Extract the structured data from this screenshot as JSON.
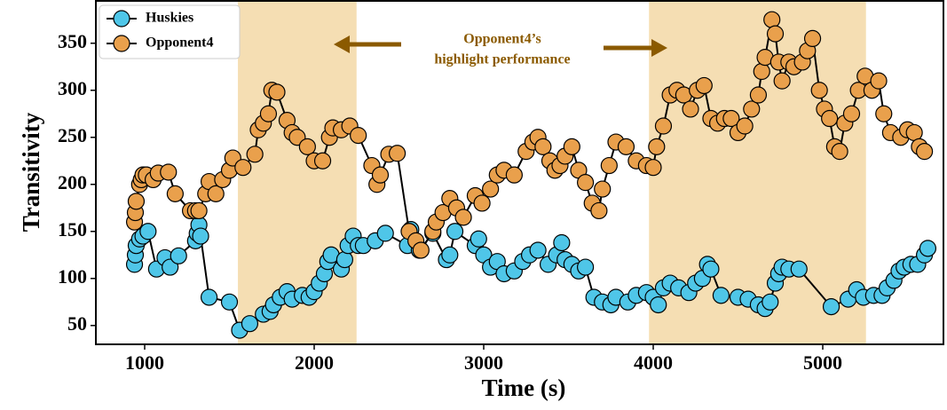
{
  "chart_data": {
    "type": "line",
    "x_label": "Time (s)",
    "y_label": "Transitivity",
    "xlim": [
      712,
      5712
    ],
    "ylim": [
      30,
      395
    ],
    "xticks": [
      1000,
      2000,
      3000,
      4000,
      5000
    ],
    "yticks": [
      50,
      100,
      150,
      200,
      250,
      300,
      350
    ],
    "legend": "upper left",
    "highlight_color": "#f5deb3",
    "highlight_spans": [
      [
        1550,
        2250
      ],
      [
        3975,
        5255
      ]
    ],
    "annotation": {
      "lines": [
        "Opponent4’s",
        "highlight performance"
      ],
      "color": "#8b5a00"
    },
    "series": [
      {
        "name": "Huskies",
        "color": "#4fc6e8",
        "x": [
          940,
          945,
          950,
          970,
          990,
          1020,
          1070,
          1120,
          1150,
          1200,
          1300,
          1310,
          1320,
          1330,
          1380,
          1500,
          1560,
          1620,
          1700,
          1740,
          1760,
          1800,
          1840,
          1870,
          1930,
          1970,
          2000,
          2030,
          2060,
          2080,
          2100,
          2160,
          2180,
          2200,
          2230,
          2260,
          2290,
          2360,
          2420,
          2550,
          2570,
          2620,
          2700,
          2780,
          2800,
          2830,
          2950,
          2970,
          3000,
          3040,
          3080,
          3120,
          3180,
          3230,
          3270,
          3320,
          3380,
          3430,
          3460,
          3480,
          3520,
          3560,
          3600,
          3650,
          3700,
          3750,
          3780,
          3850,
          3900,
          3960,
          4000,
          4030,
          4060,
          4100,
          4150,
          4210,
          4250,
          4290,
          4320,
          4340,
          4400,
          4500,
          4560,
          4620,
          4660,
          4690,
          4720,
          4740,
          4760,
          4800,
          4860,
          5050,
          5150,
          5200,
          5240,
          5300,
          5350,
          5380,
          5420,
          5450,
          5480,
          5520,
          5560,
          5600,
          5620
        ],
        "values": [
          115,
          125,
          135,
          142,
          145,
          150,
          110,
          122,
          112,
          124,
          140,
          148,
          157,
          145,
          80,
          75,
          45,
          52,
          62,
          65,
          72,
          80,
          86,
          78,
          82,
          80,
          86,
          95,
          105,
          118,
          125,
          110,
          120,
          135,
          145,
          135,
          135,
          140,
          148,
          135,
          152,
          130,
          148,
          120,
          125,
          150,
          135,
          142,
          125,
          112,
          118,
          105,
          108,
          118,
          125,
          130,
          115,
          125,
          138,
          120,
          115,
          108,
          112,
          80,
          75,
          72,
          80,
          75,
          82,
          85,
          80,
          72,
          90,
          95,
          90,
          85,
          95,
          100,
          115,
          110,
          82,
          80,
          78,
          72,
          68,
          75,
          95,
          105,
          112,
          110,
          110,
          70,
          78,
          88,
          80,
          82,
          82,
          90,
          98,
          108,
          112,
          115,
          115,
          125,
          132
        ]
      },
      {
        "name": "Opponent4",
        "color": "#e9a04c",
        "x": [
          940,
          945,
          950,
          970,
          980,
          990,
          1010,
          1050,
          1080,
          1140,
          1180,
          1270,
          1300,
          1320,
          1360,
          1380,
          1420,
          1460,
          1500,
          1520,
          1580,
          1650,
          1670,
          1700,
          1730,
          1750,
          1780,
          1840,
          1870,
          1900,
          1960,
          2000,
          2050,
          2090,
          2110,
          2160,
          2210,
          2260,
          2340,
          2370,
          2390,
          2440,
          2490,
          2560,
          2600,
          2630,
          2700,
          2720,
          2760,
          2800,
          2840,
          2880,
          2950,
          2990,
          3040,
          3080,
          3120,
          3180,
          3250,
          3290,
          3320,
          3350,
          3390,
          3420,
          3450,
          3480,
          3520,
          3560,
          3600,
          3640,
          3680,
          3700,
          3740,
          3780,
          3840,
          3900,
          3960,
          4000,
          4020,
          4060,
          4100,
          4140,
          4180,
          4220,
          4260,
          4300,
          4340,
          4380,
          4420,
          4460,
          4500,
          4540,
          4580,
          4620,
          4640,
          4660,
          4700,
          4720,
          4740,
          4760,
          4800,
          4830,
          4880,
          4910,
          4940,
          4980,
          5010,
          5040,
          5070,
          5100,
          5130,
          5170,
          5210,
          5250,
          5290,
          5330,
          5360,
          5400,
          5460,
          5500,
          5540,
          5570,
          5600
        ],
        "values": [
          160,
          170,
          182,
          200,
          205,
          210,
          210,
          205,
          212,
          213,
          190,
          172,
          172,
          172,
          190,
          203,
          190,
          205,
          215,
          228,
          218,
          232,
          258,
          265,
          275,
          300,
          298,
          268,
          255,
          250,
          240,
          225,
          225,
          250,
          260,
          258,
          262,
          252,
          220,
          200,
          210,
          232,
          233,
          150,
          140,
          130,
          150,
          160,
          170,
          185,
          175,
          165,
          188,
          180,
          195,
          210,
          215,
          210,
          235,
          245,
          250,
          240,
          225,
          215,
          220,
          230,
          240,
          215,
          202,
          180,
          172,
          195,
          220,
          245,
          240,
          225,
          220,
          218,
          240,
          262,
          295,
          300,
          295,
          280,
          300,
          305,
          270,
          265,
          270,
          270,
          255,
          262,
          280,
          295,
          320,
          335,
          375,
          360,
          330,
          310,
          330,
          325,
          330,
          342,
          355,
          300,
          280,
          270,
          240,
          235,
          265,
          275,
          300,
          315,
          300,
          310,
          275,
          255,
          250,
          258,
          255,
          240,
          235
        ]
      }
    ]
  }
}
